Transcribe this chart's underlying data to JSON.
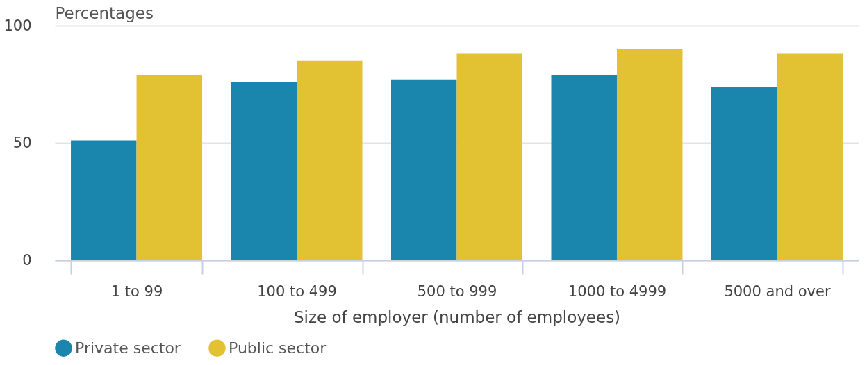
{
  "chart_data": {
    "type": "bar",
    "ylabel": "Percentages",
    "xlabel": "Size of employer (number of employees)",
    "categories": [
      "1 to 99",
      "100 to 499",
      "500 to 999",
      "1000 to 4999",
      "5000 and over"
    ],
    "series": [
      {
        "name": "Private sector",
        "color": "#1a85ad",
        "values": [
          51,
          76,
          77,
          79,
          74
        ]
      },
      {
        "name": "Public sector",
        "color": "#e2c232",
        "values": [
          79,
          85,
          88,
          90,
          88
        ]
      }
    ],
    "ylim": [
      0,
      100
    ],
    "yticks": [
      0,
      50,
      100
    ],
    "grid": "y",
    "legend": "bottom left"
  }
}
